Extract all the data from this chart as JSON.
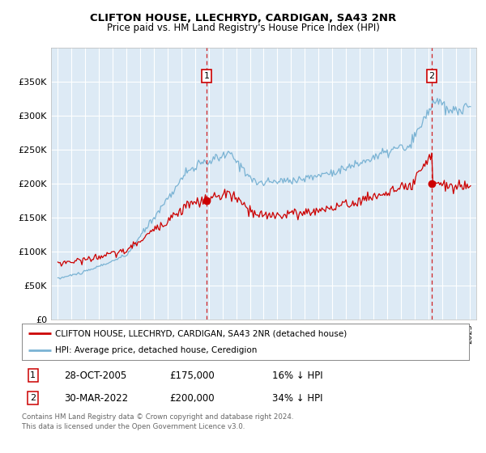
{
  "title": "CLIFTON HOUSE, LLECHRYD, CARDIGAN, SA43 2NR",
  "subtitle": "Price paid vs. HM Land Registry's House Price Index (HPI)",
  "hpi_color": "#7ab3d4",
  "price_color": "#cc0000",
  "background_color": "#ddeaf5",
  "grid_color": "#ffffff",
  "ylim": [
    0,
    400000
  ],
  "yticks": [
    0,
    50000,
    100000,
    150000,
    200000,
    250000,
    300000,
    350000
  ],
  "ytick_labels": [
    "£0",
    "£50K",
    "£100K",
    "£150K",
    "£200K",
    "£250K",
    "£300K",
    "£350K"
  ],
  "sale1_date_num": 2005.83,
  "sale1_price": 175000,
  "sale1_label": "1",
  "sale1_date_str": "28-OCT-2005",
  "sale1_pct": "16%",
  "sale2_date_num": 2022.25,
  "sale2_price": 200000,
  "sale2_label": "2",
  "sale2_date_str": "30-MAR-2022",
  "sale2_pct": "34%",
  "legend_house": "CLIFTON HOUSE, LLECHRYD, CARDIGAN, SA43 2NR (detached house)",
  "legend_hpi": "HPI: Average price, detached house, Ceredigion",
  "footer": "Contains HM Land Registry data © Crown copyright and database right 2024.\nThis data is licensed under the Open Government Licence v3.0.",
  "xlim_start": 1994.5,
  "xlim_end": 2025.5
}
